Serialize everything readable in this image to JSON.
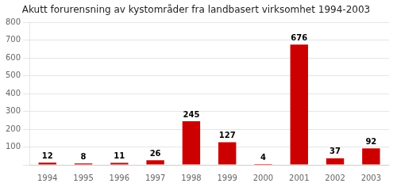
{
  "chart_data": {
    "type": "bar",
    "title": "Akutt forurensning av kystområder fra landbasert virksomhet 1994-2003",
    "categories": [
      "1994",
      "1995",
      "1996",
      "1997",
      "1998",
      "1999",
      "2000",
      "2001",
      "2002",
      "2003"
    ],
    "values": [
      12,
      8,
      11,
      26,
      245,
      127,
      4,
      676,
      37,
      92
    ],
    "color": "#cc0000",
    "ylim": [
      0,
      800
    ],
    "yticks": [
      {
        "value": 0,
        "label": ""
      },
      100,
      200,
      300,
      400,
      500,
      600,
      700,
      800
    ],
    "grid": true,
    "data_labels": true
  }
}
